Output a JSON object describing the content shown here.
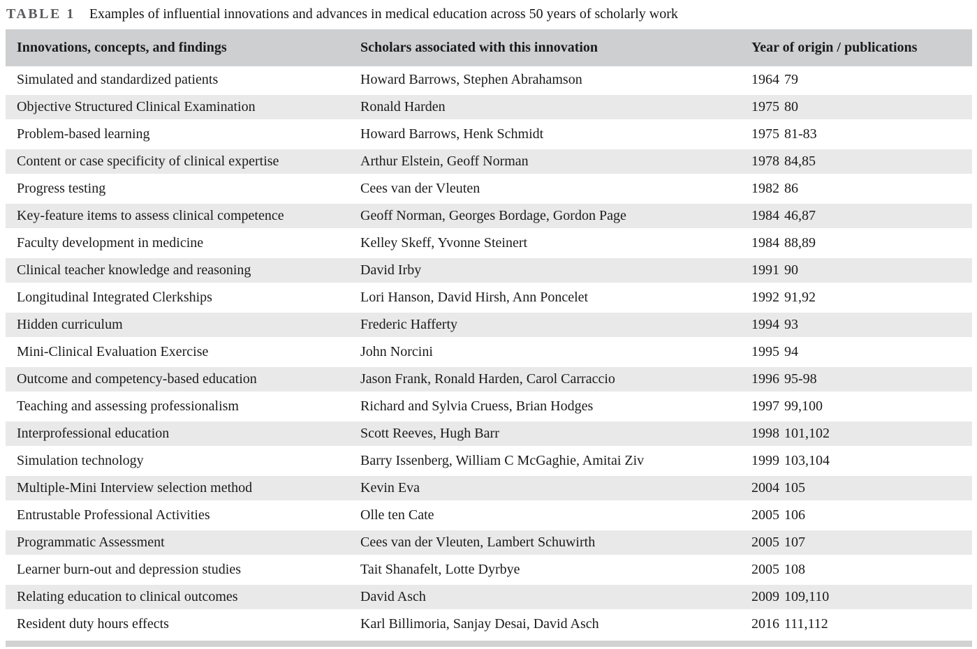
{
  "caption": {
    "label": "TABLE 1",
    "text": "Examples of influential innovations and advances in medical education across 50 years of scholarly work"
  },
  "table": {
    "columns": [
      "Innovations, concepts, and findings",
      "Scholars associated with this innovation",
      "Year of origin / publications"
    ],
    "rows": [
      {
        "innovation": "Simulated and standardized patients",
        "scholars": "Howard Barrows, Stephen Abrahamson",
        "year": "1964",
        "refs": "79"
      },
      {
        "innovation": "Objective Structured Clinical Examination",
        "scholars": "Ronald Harden",
        "year": "1975",
        "refs": "80"
      },
      {
        "innovation": "Problem-based learning",
        "scholars": "Howard Barrows, Henk Schmidt",
        "year": "1975",
        "refs": "81-83"
      },
      {
        "innovation": "Content or case specificity of clinical expertise",
        "scholars": "Arthur Elstein, Geoff Norman",
        "year": "1978",
        "refs": "84,85"
      },
      {
        "innovation": "Progress testing",
        "scholars": "Cees van der Vleuten",
        "year": "1982",
        "refs": "86"
      },
      {
        "innovation": "Key-feature items to assess clinical competence",
        "scholars": "Geoff Norman, Georges Bordage, Gordon Page",
        "year": "1984",
        "refs": "46,87"
      },
      {
        "innovation": "Faculty development in medicine",
        "scholars": "Kelley Skeff, Yvonne Steinert",
        "year": "1984",
        "refs": "88,89"
      },
      {
        "innovation": "Clinical teacher knowledge and reasoning",
        "scholars": "David Irby",
        "year": "1991",
        "refs": "90"
      },
      {
        "innovation": "Longitudinal Integrated Clerkships",
        "scholars": "Lori Hanson, David Hirsh, Ann Poncelet",
        "year": "1992",
        "refs": "91,92"
      },
      {
        "innovation": "Hidden curriculum",
        "scholars": "Frederic Hafferty",
        "year": "1994",
        "refs": "93"
      },
      {
        "innovation": "Mini-Clinical Evaluation Exercise",
        "scholars": "John Norcini",
        "year": "1995",
        "refs": "94"
      },
      {
        "innovation": "Outcome and competency-based education",
        "scholars": "Jason Frank, Ronald Harden, Carol Carraccio",
        "year": "1996",
        "refs": "95-98"
      },
      {
        "innovation": "Teaching and assessing professionalism",
        "scholars": "Richard and Sylvia Cruess, Brian Hodges",
        "year": "1997",
        "refs": "99,100"
      },
      {
        "innovation": "Interprofessional education",
        "scholars": "Scott Reeves, Hugh Barr",
        "year": "1998",
        "refs": "101,102"
      },
      {
        "innovation": "Simulation technology",
        "scholars": "Barry Issenberg, William C McGaghie, Amitai Ziv",
        "year": "1999",
        "refs": "103,104"
      },
      {
        "innovation": "Multiple-Mini Interview selection method",
        "scholars": "Kevin Eva",
        "year": "2004",
        "refs": "105"
      },
      {
        "innovation": "Entrustable Professional Activities",
        "scholars": "Olle ten Cate",
        "year": "2005",
        "refs": "106"
      },
      {
        "innovation": "Programmatic Assessment",
        "scholars": "Cees van der Vleuten, Lambert Schuwirth",
        "year": "2005",
        "refs": "107"
      },
      {
        "innovation": "Learner burn-out and depression studies",
        "scholars": "Tait Shanafelt, Lotte Dyrbye",
        "year": "2005",
        "refs": "108"
      },
      {
        "innovation": "Relating education to clinical outcomes",
        "scholars": "David Asch",
        "year": "2009",
        "refs": "109,110"
      },
      {
        "innovation": "Resident duty hours effects",
        "scholars": "Karl Billimoria, Sanjay Desai, David Asch",
        "year": "2016",
        "refs": "111,112"
      }
    ]
  },
  "colors": {
    "header_bg": "#cdcfd1",
    "shaded_row_bg": "#e9e9e9",
    "bottom_bar": "#d2d2d2",
    "caption_label": "#5a5b5d",
    "text": "#1b1b1b"
  }
}
